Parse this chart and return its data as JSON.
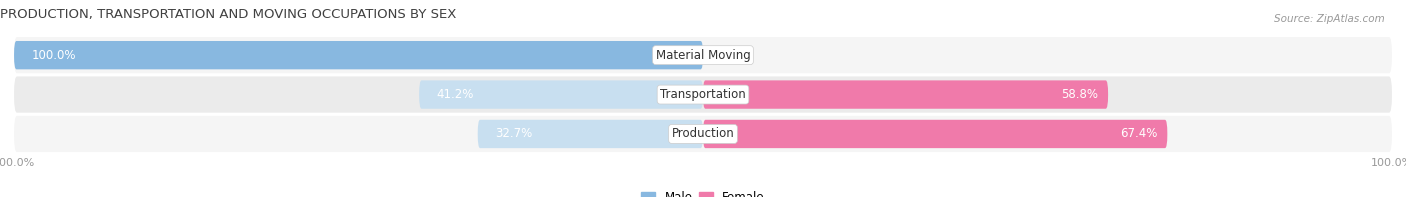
{
  "title": "PRODUCTION, TRANSPORTATION AND MOVING OCCUPATIONS BY SEX",
  "source": "Source: ZipAtlas.com",
  "categories": [
    "Material Moving",
    "Transportation",
    "Production"
  ],
  "male_values": [
    100.0,
    41.2,
    32.7
  ],
  "female_values": [
    0.0,
    58.8,
    67.4
  ],
  "male_color": "#88b8e0",
  "female_color": "#f07aaa",
  "male_light_color": "#c8dff0",
  "female_light_color": "#f8c0d8",
  "row_bg_color": "#ebebeb",
  "row_bg_color2": "#f5f5f5",
  "label_color_dark": "#555555",
  "label_color_white": "#ffffff",
  "title_color": "#404040",
  "axis_label_color": "#999999",
  "bar_height": 0.72,
  "figsize": [
    14.06,
    1.97
  ],
  "dpi": 100,
  "xlim": [
    -100,
    100
  ]
}
